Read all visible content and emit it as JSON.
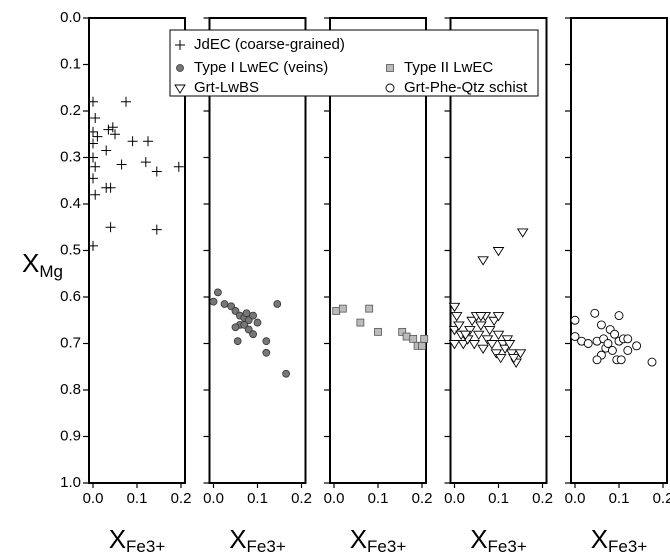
{
  "chart_data": {
    "type": "scatter",
    "ylabel": {
      "main": "X",
      "sub": "Mg"
    },
    "xlabel": {
      "main": "X",
      "sub": "Fe3+"
    },
    "ylim": [
      0,
      1
    ],
    "y_inverted": true,
    "yticks": [
      {
        "value": 0,
        "label": "0.0"
      },
      0.1,
      0.2,
      0.3,
      0.4,
      0.5,
      0.6,
      0.7,
      0.8,
      0.9,
      {
        "value": 1,
        "label": "1.0"
      }
    ],
    "xlim": [
      0,
      0.2
    ],
    "xticks": [
      {
        "value": 0,
        "label": "0.0"
      },
      0.1,
      0.2
    ],
    "series": [
      {
        "name": "JdEC (coarse-grained)",
        "marker": "plus",
        "color": "#000000",
        "x": [
          0.0,
          0.075,
          0.005,
          0.0,
          0.01,
          0.035,
          0.045,
          0.05,
          0.0,
          0.0,
          0.03,
          0.005,
          0.065,
          0.09,
          0.125,
          0.12,
          0.145,
          0.195,
          0.0,
          0.005,
          0.03,
          0.04,
          0.04,
          0.0,
          0.145
        ],
        "y": [
          0.18,
          0.18,
          0.215,
          0.245,
          0.255,
          0.24,
          0.235,
          0.25,
          0.27,
          0.3,
          0.285,
          0.32,
          0.315,
          0.265,
          0.265,
          0.31,
          0.33,
          0.32,
          0.345,
          0.38,
          0.365,
          0.365,
          0.45,
          0.49,
          0.455
        ]
      },
      {
        "name": "Type I LwEC (veins)",
        "marker": "circle",
        "color": "#777777",
        "x": [
          0.0,
          0.01,
          0.025,
          0.04,
          0.05,
          0.06,
          0.07,
          0.075,
          0.08,
          0.09,
          0.06,
          0.07,
          0.05,
          0.08,
          0.1,
          0.055,
          0.09,
          0.12,
          0.12,
          0.145,
          0.165
        ],
        "y": [
          0.61,
          0.59,
          0.615,
          0.62,
          0.63,
          0.64,
          0.645,
          0.635,
          0.65,
          0.64,
          0.66,
          0.66,
          0.665,
          0.67,
          0.655,
          0.695,
          0.68,
          0.695,
          0.72,
          0.615,
          0.765
        ]
      },
      {
        "name": "Type II LwEC",
        "marker": "square",
        "color": "#bbbbbb",
        "x": [
          0.005,
          0.02,
          0.06,
          0.08,
          0.1,
          0.155,
          0.165,
          0.18,
          0.19,
          0.2,
          0.205
        ],
        "y": [
          0.63,
          0.625,
          0.655,
          0.625,
          0.675,
          0.675,
          0.685,
          0.69,
          0.705,
          0.705,
          0.69
        ]
      },
      {
        "name": "Grt-LwBS",
        "marker": "triangle-down",
        "color": "#000000",
        "x": [
          0.0,
          0.005,
          0.0,
          0.01,
          0.02,
          0.0,
          0.015,
          0.03,
          0.04,
          0.05,
          0.06,
          0.045,
          0.055,
          0.07,
          0.08,
          0.065,
          0.075,
          0.09,
          0.1,
          0.085,
          0.095,
          0.11,
          0.12,
          0.105,
          0.115,
          0.13,
          0.14,
          0.125,
          0.135,
          0.15,
          0.1,
          0.06,
          0.035,
          0.025,
          0.065,
          0.1,
          0.155
        ],
        "y": [
          0.62,
          0.64,
          0.67,
          0.66,
          0.7,
          0.7,
          0.68,
          0.69,
          0.65,
          0.64,
          0.66,
          0.7,
          0.68,
          0.64,
          0.67,
          0.71,
          0.69,
          0.65,
          0.68,
          0.7,
          0.72,
          0.7,
          0.69,
          0.73,
          0.71,
          0.72,
          0.74,
          0.7,
          0.73,
          0.72,
          0.64,
          0.64,
          0.67,
          0.68,
          0.52,
          0.5,
          0.46
        ]
      },
      {
        "name": "Grt-Phe-Qtz schist",
        "marker": "circle-open",
        "color": "#000000",
        "x": [
          0.0,
          0.0,
          0.015,
          0.03,
          0.045,
          0.05,
          0.06,
          0.065,
          0.07,
          0.06,
          0.05,
          0.075,
          0.08,
          0.09,
          0.085,
          0.1,
          0.1,
          0.095,
          0.11,
          0.12,
          0.12,
          0.14,
          0.175,
          0.105
        ],
        "y": [
          0.65,
          0.685,
          0.695,
          0.7,
          0.635,
          0.695,
          0.66,
          0.69,
          0.71,
          0.725,
          0.735,
          0.7,
          0.67,
          0.68,
          0.715,
          0.64,
          0.695,
          0.735,
          0.69,
          0.69,
          0.715,
          0.705,
          0.74,
          0.735
        ]
      }
    ]
  }
}
